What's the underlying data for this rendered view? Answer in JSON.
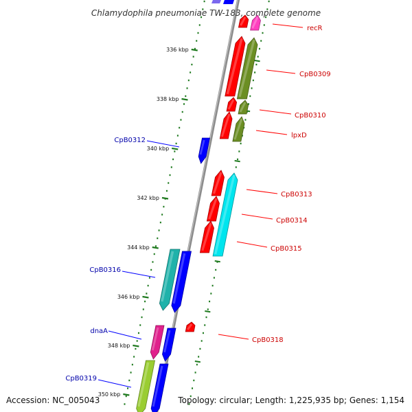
{
  "title": "Chlamydophila pneumoniae TW-183, complete genome",
  "footer": {
    "accession": "Accession: NC_005043",
    "summary": "Topology: circular; Length: 1,225,935 bp; Genes: 1,154"
  },
  "colors": {
    "backbone": "#8c8c8c",
    "tick": "#1f7a1f",
    "label_forward": "#0000aa",
    "label_reverse": "#cc0000",
    "leader_forward": "#0000ff",
    "leader_reverse": "#ff0000"
  },
  "ticks": [
    "336 kbp",
    "338 kbp",
    "340 kbp",
    "342 kbp",
    "344 kbp",
    "346 kbp",
    "348 kbp",
    "350 kbp"
  ],
  "gene_labels": {
    "reverse": [
      "recR",
      "CpB0309",
      "CpB0310",
      "lpxD",
      "CpB0313",
      "CpB0314",
      "CpB0315",
      "CpB0318"
    ],
    "forward": [
      "CpB0312",
      "CpB0316",
      "dnaA",
      "CpB0319"
    ]
  },
  "features": [
    {
      "id": "recR",
      "strand": "-",
      "color": "#ff0000"
    },
    {
      "id": "recR-cog",
      "strand": "-",
      "color": "#ff3fbf"
    },
    {
      "id": "CpB0309",
      "strand": "-",
      "color": "#ff0000"
    },
    {
      "id": "CpB0309-cog",
      "strand": "-",
      "color": "#6b8e23"
    },
    {
      "id": "CpB0310",
      "strand": "-",
      "color": "#ff0000"
    },
    {
      "id": "CpB0310-cog",
      "strand": "-",
      "color": "#6b8e23"
    },
    {
      "id": "lpxD",
      "strand": "-",
      "color": "#ff0000"
    },
    {
      "id": "lpxD-cog",
      "strand": "-",
      "color": "#6b8e23"
    },
    {
      "id": "CpB0312",
      "strand": "+",
      "color": "#0000ff"
    },
    {
      "id": "CpB0313",
      "strand": "-",
      "color": "#ff0000"
    },
    {
      "id": "CpB0314",
      "strand": "-",
      "color": "#ff0000"
    },
    {
      "id": "CpB0315",
      "strand": "-",
      "color": "#ff0000"
    },
    {
      "id": "CpB0313-15-cog",
      "strand": "-",
      "color": "#00e5ee"
    },
    {
      "id": "CpB0316",
      "strand": "+",
      "color": "#0000ff"
    },
    {
      "id": "CpB0316-cog",
      "strand": "+",
      "color": "#20b2aa"
    },
    {
      "id": "CpB0318",
      "strand": "-",
      "color": "#ff0000"
    },
    {
      "id": "dnaA",
      "strand": "+",
      "color": "#0000ff"
    },
    {
      "id": "dnaA-cog",
      "strand": "+",
      "color": "#e0208c"
    },
    {
      "id": "CpB0319",
      "strand": "+",
      "color": "#0000ff"
    },
    {
      "id": "CpB0319-cog",
      "strand": "+",
      "color": "#9acd32"
    }
  ]
}
